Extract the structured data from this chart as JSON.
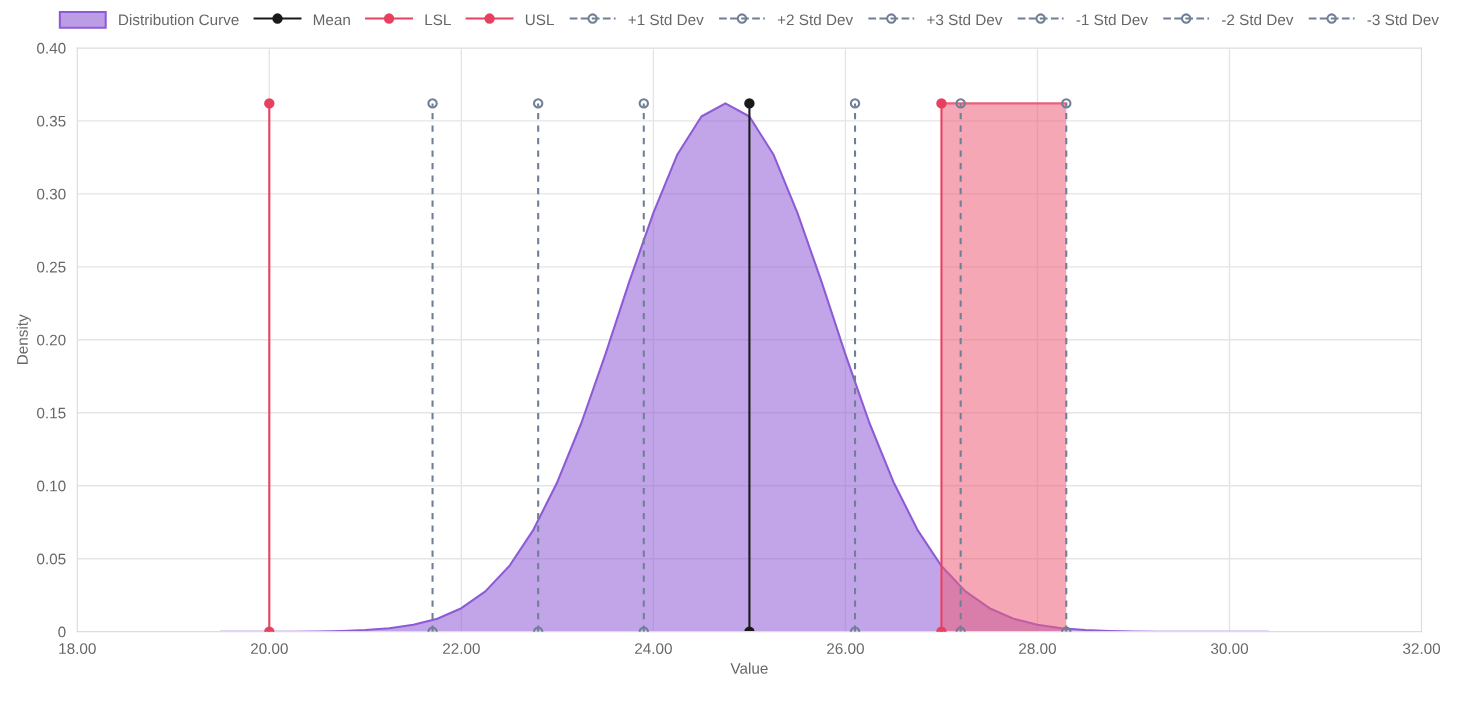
{
  "chart_data": {
    "type": "line",
    "xlabel": "Value",
    "ylabel": "Density",
    "xlim": [
      18,
      32
    ],
    "xticks": [
      {
        "value": 18,
        "label": "18.00"
      },
      {
        "value": 20,
        "label": "20.00"
      },
      {
        "value": 22,
        "label": "22.00"
      },
      {
        "value": 24,
        "label": "24.00"
      },
      {
        "value": 26,
        "label": "26.00"
      },
      {
        "value": 28,
        "label": "28.00"
      },
      {
        "value": 30,
        "label": "30.00"
      },
      {
        "value": 32,
        "label": "32.00"
      }
    ],
    "ylim": [
      0,
      0.4
    ],
    "yticks": [
      0,
      0.05,
      {
        "value": 0.1,
        "label": "0.10"
      },
      0.15,
      {
        "value": 0.2,
        "label": "0.20"
      },
      0.25,
      {
        "value": 0.3,
        "label": "0.30"
      },
      0.35,
      {
        "value": 0.4,
        "label": "0.40"
      }
    ],
    "grid": true,
    "legend": "top",
    "marker": "circle",
    "series": [
      {
        "name": "Distribution Curve",
        "type": "area",
        "color": "#8e5bd6",
        "marker": "none",
        "x": [
          19.5,
          19.75,
          20,
          20.25,
          20.5,
          20.75,
          21,
          21.25,
          21.5,
          21.75,
          22,
          22.25,
          22.5,
          22.75,
          23,
          23.25,
          23.5,
          23.75,
          24,
          24.25,
          24.5,
          24.75,
          25,
          25.25,
          25.5,
          25.75,
          26,
          26.25,
          26.5,
          26.75,
          27,
          27.25,
          27.5,
          27.75,
          28,
          28.25,
          28.5,
          28.75,
          29,
          29.25,
          29.5,
          29.75,
          30,
          30.25,
          30.4
        ],
        "values": [
          0,
          0,
          0,
          0,
          0.0001,
          0.0005,
          0.0011,
          0.0023,
          0.0047,
          0.0089,
          0.0161,
          0.0276,
          0.045,
          0.0698,
          0.1026,
          0.143,
          0.19,
          0.24,
          0.287,
          0.327,
          0.353,
          0.362,
          0.353,
          0.327,
          0.287,
          0.24,
          0.19,
          0.143,
          0.1026,
          0.0698,
          0.045,
          0.0276,
          0.0161,
          0.0089,
          0.0047,
          0.0023,
          0.0011,
          0.0005,
          0.0001,
          0,
          0,
          0,
          0,
          0,
          0
        ]
      },
      {
        "type": "area",
        "color": "#ec5f78",
        "marker": "none",
        "x": [
          27,
          28.3
        ],
        "values": [
          0.362,
          0.362
        ]
      },
      {
        "name": "Mean",
        "color": "#1a1a1a",
        "x": [
          25,
          25
        ],
        "values": [
          0,
          0.362
        ]
      },
      {
        "name": "LSL",
        "color": "#e8405f",
        "x": [
          20,
          20
        ],
        "values": [
          0,
          0.362
        ]
      },
      {
        "name": "USL",
        "color": "#e8405f",
        "x": [
          27,
          27
        ],
        "values": [
          0,
          0.362
        ]
      },
      {
        "name": "+1 Std Dev",
        "color": "#6f7f96",
        "line_style": "dashed",
        "x": [
          26.1,
          26.1
        ],
        "values": [
          0,
          0.362
        ]
      },
      {
        "name": "+2 Std Dev",
        "color": "#6f7f96",
        "line_style": "dashed",
        "x": [
          27.2,
          27.2
        ],
        "values": [
          0,
          0.362
        ]
      },
      {
        "name": "+3 Std Dev",
        "color": "#6f7f96",
        "line_style": "dashed",
        "x": [
          28.3,
          28.3
        ],
        "values": [
          0,
          0.362
        ]
      },
      {
        "name": "-1 Std Dev",
        "color": "#6f7f96",
        "line_style": "dashed",
        "x": [
          23.9,
          23.9
        ],
        "values": [
          0,
          0.362
        ]
      },
      {
        "name": "-2 Std Dev",
        "color": "#6f7f96",
        "line_style": "dashed",
        "x": [
          22.8,
          22.8
        ],
        "values": [
          0,
          0.362
        ]
      },
      {
        "name": "-3 Std Dev",
        "color": "#6f7f96",
        "line_style": "dashed",
        "x": [
          21.7,
          21.7
        ],
        "values": [
          0,
          0.362
        ]
      }
    ]
  }
}
